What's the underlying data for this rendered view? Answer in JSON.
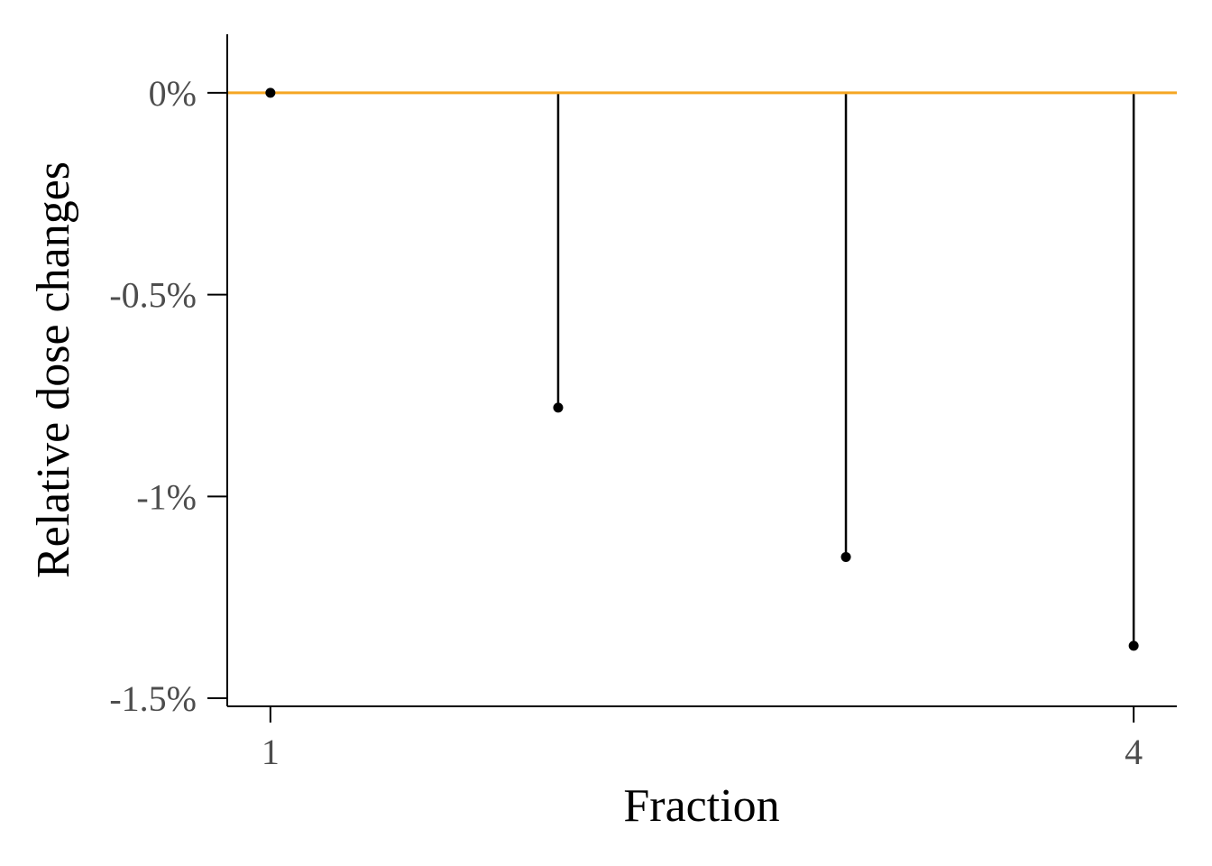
{
  "chart_data": {
    "type": "scatter",
    "style": "lollipop",
    "title": "",
    "xlabel": "Fraction",
    "ylabel": "Relative dose changes",
    "x": [
      1,
      2,
      3,
      4
    ],
    "y": [
      0.0,
      -0.78,
      -1.15,
      -1.37
    ],
    "y_unit": "%",
    "xlim": [
      0.85,
      4.15
    ],
    "ylim": [
      -1.52,
      0.145
    ],
    "x_ticks": [
      1,
      4
    ],
    "x_tick_labels": [
      "1",
      "4"
    ],
    "y_ticks": [
      0,
      -0.5,
      -1,
      -1.5
    ],
    "y_tick_labels": [
      "0%",
      "-0.5%",
      "-1%",
      "-1.5%"
    ],
    "reference_line": {
      "y": 0,
      "color": "#F5A623"
    },
    "stem_color": "#000000",
    "point_color": "#000000",
    "grid": false,
    "legend": "none"
  }
}
